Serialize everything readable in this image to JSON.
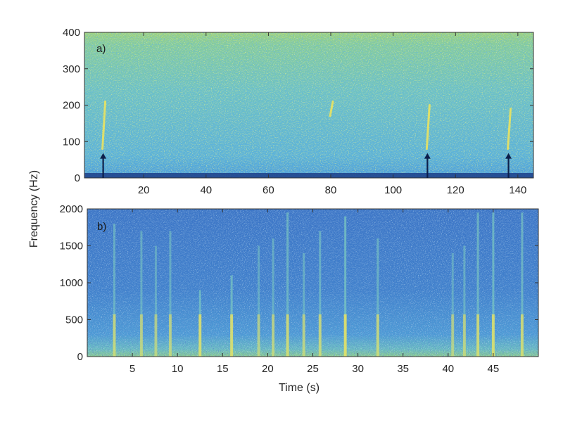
{
  "figure": {
    "ylabel": "Frequency (Hz)",
    "xlabel": "Time (s)"
  },
  "colors": {
    "background_a": "#6cc0c8",
    "background_b": "#3f7fc4",
    "low_band": "#1d3f8a",
    "streak": "#f2e65a",
    "arrow": "#0d1f4a",
    "frame": "#333333"
  },
  "chart_data": [
    {
      "type": "heatmap",
      "panel_label": "a)",
      "title": "",
      "xlabel": "",
      "ylabel": "Frequency (Hz)",
      "xlim": [
        1,
        145
      ],
      "ylim": [
        0,
        400
      ],
      "xticks": [
        20,
        40,
        60,
        80,
        100,
        120,
        140
      ],
      "yticks": [
        0,
        100,
        200,
        300,
        400
      ],
      "colormap": "parula",
      "features": [
        {
          "kind": "chirp",
          "time": 7,
          "freq_range": [
            80,
            210
          ],
          "arrow": true
        },
        {
          "kind": "chirp",
          "time": 80,
          "freq_range": [
            170,
            210
          ],
          "arrow": false
        },
        {
          "kind": "chirp",
          "time": 111,
          "freq_range": [
            80,
            200
          ],
          "arrow": true
        },
        {
          "kind": "chirp",
          "time": 137,
          "freq_range": [
            80,
            190
          ],
          "arrow": true
        }
      ]
    },
    {
      "type": "heatmap",
      "panel_label": "b)",
      "title": "",
      "xlabel": "Time (s)",
      "ylabel": "Frequency (Hz)",
      "xlim": [
        0,
        50
      ],
      "ylim": [
        0,
        2000
      ],
      "xticks": [
        5,
        10,
        15,
        20,
        25,
        30,
        35,
        40,
        45
      ],
      "yticks": [
        0,
        500,
        1000,
        1500,
        2000
      ],
      "colormap": "parula",
      "features": [
        {
          "kind": "broadband",
          "time": 3.0,
          "freq_max": 1800,
          "strength": 0.6
        },
        {
          "kind": "broadband",
          "time": 6.0,
          "freq_max": 1700,
          "strength": 0.5
        },
        {
          "kind": "broadband",
          "time": 7.6,
          "freq_max": 1500,
          "strength": 0.4
        },
        {
          "kind": "broadband",
          "time": 9.2,
          "freq_max": 1700,
          "strength": 0.5
        },
        {
          "kind": "broadband",
          "time": 12.5,
          "freq_max": 900,
          "strength": 0.8
        },
        {
          "kind": "broadband",
          "time": 16.0,
          "freq_max": 1100,
          "strength": 0.8
        },
        {
          "kind": "broadband",
          "time": 19.0,
          "freq_max": 1500,
          "strength": 0.4
        },
        {
          "kind": "broadband",
          "time": 20.6,
          "freq_max": 1600,
          "strength": 0.5
        },
        {
          "kind": "broadband",
          "time": 22.2,
          "freq_max": 1950,
          "strength": 0.7
        },
        {
          "kind": "broadband",
          "time": 24.0,
          "freq_max": 1400,
          "strength": 0.5
        },
        {
          "kind": "broadband",
          "time": 25.8,
          "freq_max": 1700,
          "strength": 0.6
        },
        {
          "kind": "broadband",
          "time": 28.6,
          "freq_max": 1900,
          "strength": 0.9
        },
        {
          "kind": "broadband",
          "time": 32.2,
          "freq_max": 1600,
          "strength": 0.6
        },
        {
          "kind": "broadband",
          "time": 40.5,
          "freq_max": 1400,
          "strength": 0.4
        },
        {
          "kind": "broadband",
          "time": 41.8,
          "freq_max": 1500,
          "strength": 0.5
        },
        {
          "kind": "broadband",
          "time": 43.3,
          "freq_max": 1950,
          "strength": 0.7
        },
        {
          "kind": "broadband",
          "time": 45.0,
          "freq_max": 1950,
          "strength": 0.8
        },
        {
          "kind": "broadband",
          "time": 48.2,
          "freq_max": 1950,
          "strength": 0.7
        }
      ]
    }
  ]
}
